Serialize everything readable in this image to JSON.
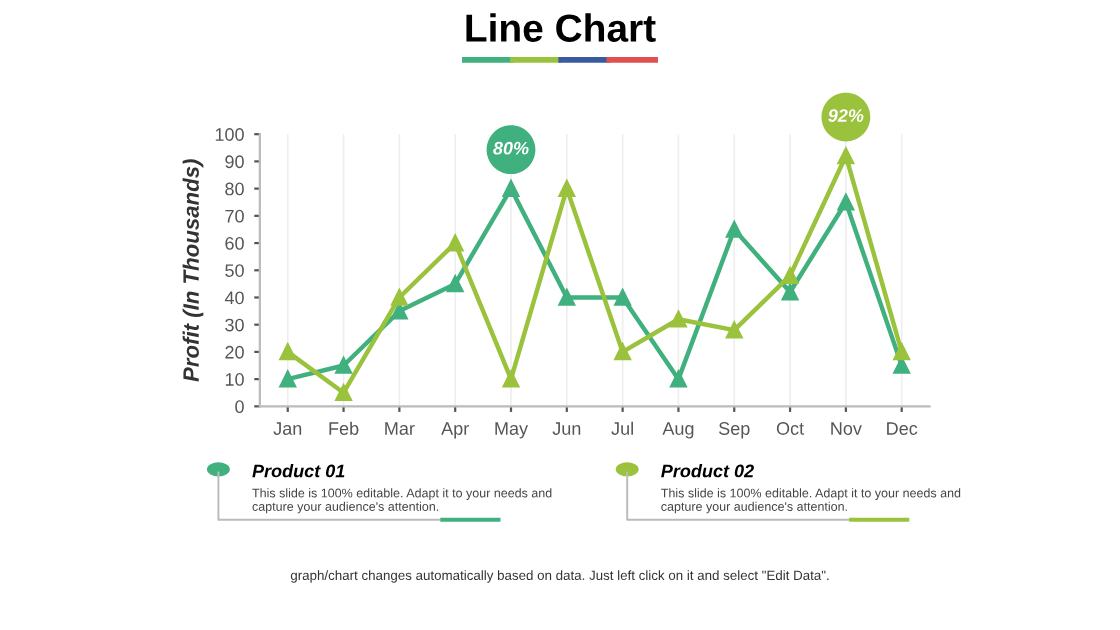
{
  "chart_data": {
    "type": "line",
    "title": "Line Chart",
    "ylabel": "Profit (In Thousands)",
    "categories": [
      "Jan",
      "Feb",
      "Mar",
      "Apr",
      "May",
      "Jun",
      "Jul",
      "Aug",
      "Sep",
      "Oct",
      "Nov",
      "Dec"
    ],
    "series": [
      {
        "name": "Product 01",
        "color": "#41b07f",
        "values": [
          10,
          15,
          35,
          45,
          80,
          40,
          40,
          10,
          65,
          42,
          75,
          15
        ]
      },
      {
        "name": "Product 02",
        "color": "#9bc23c",
        "values": [
          20,
          5,
          40,
          60,
          10,
          80,
          20,
          32,
          28,
          48,
          92,
          20
        ]
      }
    ],
    "ylim": [
      0,
      100
    ],
    "yticks": [
      0,
      10,
      20,
      30,
      40,
      50,
      60,
      70,
      80,
      90,
      100
    ],
    "grid": "x",
    "legend": "bottom",
    "marker": "triangle",
    "line_style": "solid",
    "annotations": [
      {
        "text": "80%",
        "x": "May",
        "y": 80
      },
      {
        "text": "92%",
        "x": "Nov",
        "y": 92
      },
      "This slide is 100% editable. Adapt it to your needs and capture your audience's attention.",
      "This slide is 100% editable. Adapt it to your needs and capture your audience's attention.",
      "graph/chart changes automatically based on data. Just left click on it and select \"Edit Data\"."
    ]
  }
}
